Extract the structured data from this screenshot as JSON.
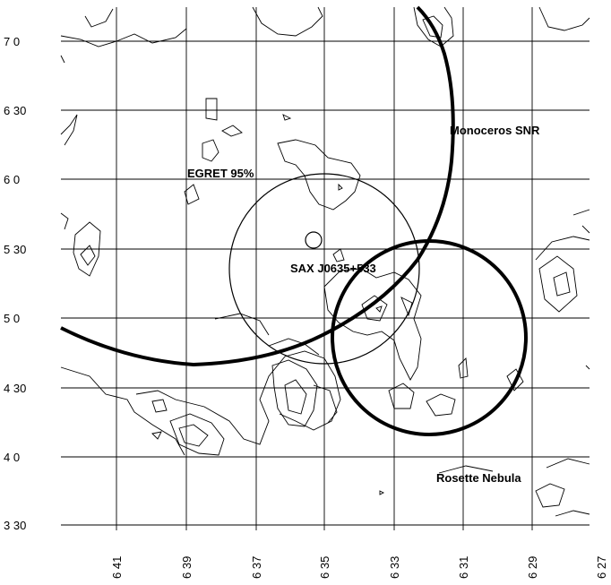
{
  "y_axis": {
    "tick_labels": [
      "7 0",
      "6 30",
      "6 0",
      "5 30",
      "5 0",
      "4 30",
      "4 0",
      "3 30"
    ]
  },
  "x_axis": {
    "tick_labels": [
      "6 41",
      "6 39",
      "6 37",
      "6 35",
      "6 33",
      "6 31",
      "6 29",
      "6 27"
    ]
  },
  "labels": {
    "monoceros": "Monoceros SNR",
    "egret": "EGRET 95%",
    "sax": "SAX J0635+533",
    "rosette": "Rosette Nebula"
  },
  "colors": {
    "ink": "#000000",
    "background": "#ffffff"
  }
}
